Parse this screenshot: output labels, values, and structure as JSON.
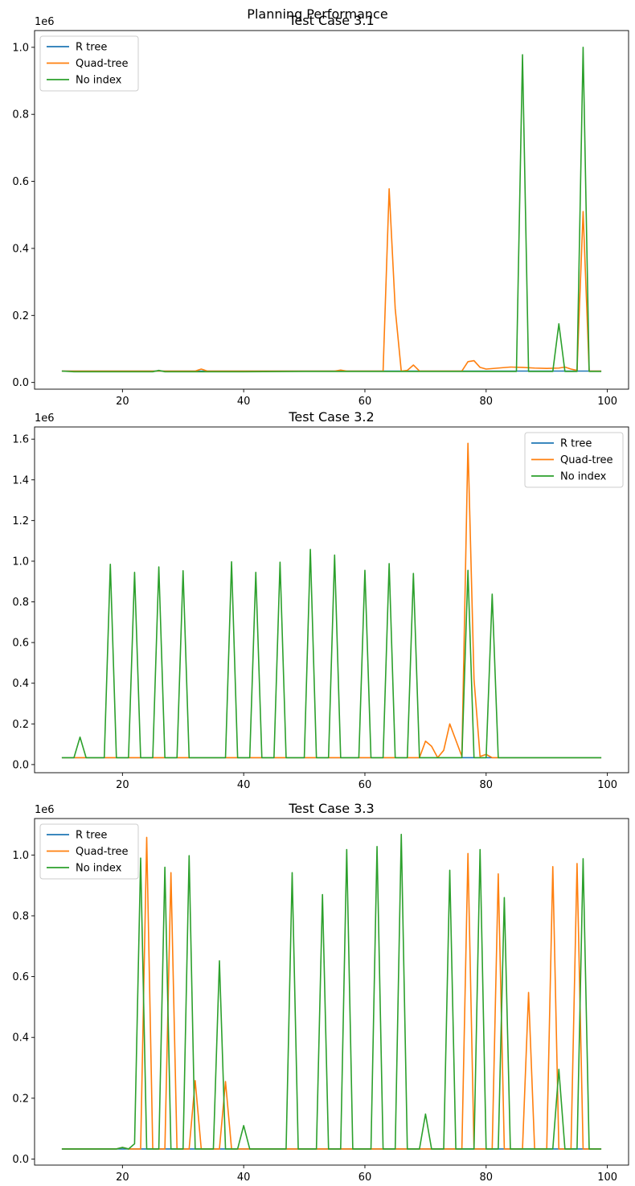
{
  "figure": {
    "suptitle": "Planning Performance",
    "series_colors": [
      "#1f77b4",
      "#ff7f0e",
      "#2ca02c"
    ]
  },
  "chart_data": [
    {
      "type": "line",
      "title": "Test Case 3.1",
      "xlabel": "",
      "ylabel": "",
      "offset_label": "1e6",
      "legend": "top-left",
      "xlim": [
        5.5,
        103.5
      ],
      "ylim": [
        -0.02,
        1.05
      ],
      "xticks": [
        20,
        40,
        60,
        80,
        100
      ],
      "yticks": [
        0.0,
        0.2,
        0.4,
        0.6,
        0.8,
        1.0
      ],
      "ytick_labels": [
        "0.0",
        "0.2",
        "0.4",
        "0.6",
        "0.8",
        "1.0"
      ],
      "series": [
        {
          "name": "R tree",
          "x": [
            10,
            99
          ],
          "y": [
            0.034,
            0.034
          ]
        },
        {
          "name": "Quad-tree",
          "x": [
            10,
            20,
            30,
            32,
            33,
            34,
            40,
            50,
            55,
            56,
            57,
            60,
            63,
            64,
            65,
            66,
            67,
            68,
            69,
            70,
            75,
            76,
            77,
            78,
            79,
            80,
            82,
            84,
            86,
            88,
            90,
            92,
            93,
            94,
            95,
            96,
            97,
            98,
            99
          ],
          "y": [
            0.034,
            0.034,
            0.034,
            0.034,
            0.04,
            0.034,
            0.034,
            0.034,
            0.034,
            0.037,
            0.034,
            0.034,
            0.034,
            0.578,
            0.22,
            0.034,
            0.036,
            0.052,
            0.034,
            0.034,
            0.034,
            0.034,
            0.062,
            0.065,
            0.045,
            0.04,
            0.043,
            0.046,
            0.045,
            0.043,
            0.042,
            0.043,
            0.046,
            0.04,
            0.036,
            0.51,
            0.034,
            0.034,
            0.034
          ]
        },
        {
          "name": "No index",
          "x": [
            10,
            12,
            20,
            25,
            26,
            27,
            30,
            40,
            50,
            60,
            70,
            80,
            85,
            86,
            87,
            90,
            91,
            92,
            93,
            95,
            96,
            97,
            99
          ],
          "y": [
            0.034,
            0.032,
            0.032,
            0.032,
            0.036,
            0.032,
            0.032,
            0.032,
            0.033,
            0.033,
            0.033,
            0.033,
            0.033,
            0.978,
            0.033,
            0.033,
            0.033,
            0.175,
            0.033,
            0.033,
            1.0,
            0.033,
            0.033
          ]
        }
      ]
    },
    {
      "type": "line",
      "title": "Test Case 3.2",
      "xlabel": "",
      "ylabel": "",
      "offset_label": "1e6",
      "legend": "top-right",
      "xlim": [
        5.5,
        103.5
      ],
      "ylim": [
        -0.04,
        1.66
      ],
      "xticks": [
        20,
        40,
        60,
        80,
        100
      ],
      "yticks": [
        0.0,
        0.2,
        0.4,
        0.6,
        0.8,
        1.0,
        1.2,
        1.4,
        1.6
      ],
      "ytick_labels": [
        "0.0",
        "0.2",
        "0.4",
        "0.6",
        "0.8",
        "1.0",
        "1.2",
        "1.4",
        "1.6"
      ],
      "series": [
        {
          "name": "R tree",
          "x": [
            10,
            99
          ],
          "y": [
            0.034,
            0.034
          ]
        },
        {
          "name": "Quad-tree",
          "x": [
            10,
            69,
            70,
            71,
            72,
            73,
            74,
            75,
            76,
            77,
            78,
            79,
            80,
            81,
            99
          ],
          "y": [
            0.034,
            0.034,
            0.115,
            0.09,
            0.034,
            0.07,
            0.2,
            0.12,
            0.04,
            1.58,
            0.42,
            0.04,
            0.05,
            0.034,
            0.034
          ]
        },
        {
          "name": "No index",
          "x": [
            10,
            12,
            13,
            14,
            17,
            18,
            19,
            21,
            22,
            23,
            25,
            26,
            27,
            29,
            30,
            31,
            37,
            38,
            39,
            41,
            42,
            43,
            45,
            46,
            47,
            50,
            51,
            52,
            54,
            55,
            56,
            59,
            60,
            61,
            63,
            64,
            65,
            67,
            68,
            69,
            76,
            77,
            78,
            80,
            81,
            82,
            99
          ],
          "y": [
            0.034,
            0.034,
            0.135,
            0.034,
            0.034,
            0.985,
            0.034,
            0.034,
            0.945,
            0.034,
            0.034,
            0.972,
            0.034,
            0.034,
            0.953,
            0.034,
            0.034,
            0.997,
            0.034,
            0.034,
            0.945,
            0.034,
            0.034,
            0.995,
            0.034,
            0.034,
            1.058,
            0.034,
            0.034,
            1.03,
            0.034,
            0.034,
            0.955,
            0.034,
            0.034,
            0.988,
            0.034,
            0.034,
            0.94,
            0.034,
            0.034,
            0.955,
            0.034,
            0.034,
            0.838,
            0.034,
            0.034
          ]
        }
      ]
    },
    {
      "type": "line",
      "title": "Test Case 3.3",
      "xlabel": "",
      "ylabel": "",
      "offset_label": "1e6",
      "legend": "top-left",
      "xlim": [
        5.5,
        103.5
      ],
      "ylim": [
        -0.02,
        1.12
      ],
      "xticks": [
        20,
        40,
        60,
        80,
        100
      ],
      "yticks": [
        0.0,
        0.2,
        0.4,
        0.6,
        0.8,
        1.0
      ],
      "ytick_labels": [
        "0.0",
        "0.2",
        "0.4",
        "0.6",
        "0.8",
        "1.0"
      ],
      "series": [
        {
          "name": "R tree",
          "x": [
            10,
            99
          ],
          "y": [
            0.033,
            0.033
          ]
        },
        {
          "name": "Quad-tree",
          "x": [
            10,
            19,
            20,
            21,
            23,
            24,
            25,
            27,
            28,
            29,
            31,
            32,
            33,
            36,
            37,
            38,
            76,
            77,
            78,
            81,
            82,
            83,
            86,
            87,
            88,
            90,
            91,
            92,
            94,
            95,
            96,
            99
          ],
          "y": [
            0.033,
            0.033,
            0.038,
            0.033,
            0.033,
            1.058,
            0.033,
            0.033,
            0.942,
            0.033,
            0.033,
            0.258,
            0.033,
            0.033,
            0.255,
            0.033,
            0.033,
            1.005,
            0.033,
            0.033,
            0.938,
            0.033,
            0.033,
            0.548,
            0.033,
            0.033,
            0.962,
            0.033,
            0.033,
            0.972,
            0.033,
            0.033
          ]
        },
        {
          "name": "No index",
          "x": [
            10,
            19,
            20,
            21,
            22,
            23,
            24,
            26,
            27,
            28,
            30,
            31,
            32,
            35,
            36,
            37,
            39,
            40,
            41,
            47,
            48,
            49,
            52,
            53,
            54,
            56,
            57,
            58,
            61,
            62,
            63,
            65,
            66,
            67,
            69,
            70,
            71,
            73,
            74,
            75,
            78,
            79,
            80,
            82,
            83,
            84,
            91,
            92,
            93,
            95,
            96,
            97,
            99
          ],
          "y": [
            0.033,
            0.033,
            0.038,
            0.033,
            0.05,
            0.99,
            0.033,
            0.033,
            0.96,
            0.033,
            0.033,
            0.998,
            0.033,
            0.033,
            0.652,
            0.033,
            0.033,
            0.11,
            0.033,
            0.033,
            0.942,
            0.033,
            0.033,
            0.87,
            0.033,
            0.033,
            1.018,
            0.033,
            0.033,
            1.028,
            0.033,
            0.033,
            1.068,
            0.033,
            0.033,
            0.148,
            0.033,
            0.033,
            0.95,
            0.033,
            0.033,
            1.018,
            0.033,
            0.033,
            0.86,
            0.033,
            0.033,
            0.295,
            0.033,
            0.033,
            0.988,
            0.033,
            0.033
          ]
        }
      ]
    }
  ]
}
